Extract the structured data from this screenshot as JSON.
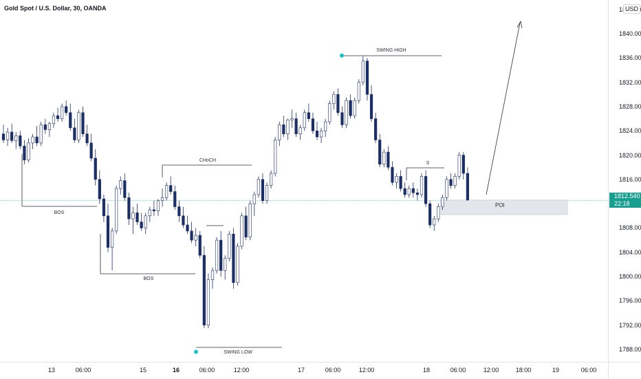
{
  "header": {
    "symbol_title": "Gold Spot / U.S. Dollar, 30, OANDA",
    "currency": "USD"
  },
  "price_axis": {
    "ticks": [
      "1840.000",
      "1836.000",
      "1832.000",
      "1828.000",
      "1824.000",
      "1820.000",
      "1816.000",
      "1808.000",
      "1804.000",
      "1800.000",
      "1796.000",
      "1792.000",
      "1788.000"
    ],
    "ticks_partial": [
      "18",
      "00"
    ],
    "current_price": "1812.540",
    "countdown": "22:18"
  },
  "time_axis": {
    "ticks": [
      "13",
      "06:00",
      "15",
      "16",
      "06:00",
      "12:00",
      "17",
      "06:00",
      "12:00",
      "18",
      "06:00",
      "12:00",
      "18:00",
      "19",
      "06:00"
    ]
  },
  "annotations": {
    "swing_high": "SWING HIGH",
    "swing_low": "SWING LOW",
    "choch": "CHoCH",
    "bos_1": "BOS",
    "bos_2": "BOS",
    "s_label": "S",
    "poi": "POI"
  },
  "colors": {
    "bull_candle": "#ffffff",
    "candle_outline": "#1c2e66",
    "bear_candle": "#1c2e66",
    "price_line": "#1a9e8f",
    "poi_zone": "#e3e6ea",
    "swing_marker": "#1cc0c8"
  },
  "chart_data": {
    "type": "candlestick",
    "title": "Gold Spot / U.S. Dollar, 30, OANDA",
    "ylim": [
      1786,
      1845
    ],
    "last_price": 1812.54,
    "swing_high": 1836.4,
    "swing_low": 1787.6,
    "ohlc": [
      [
        1823.5,
        1825.0,
        1822.0,
        1822.5
      ],
      [
        1822.5,
        1824.5,
        1821.5,
        1823.8
      ],
      [
        1823.8,
        1825.2,
        1822.0,
        1822.4
      ],
      [
        1822.4,
        1823.8,
        1821.0,
        1823.2
      ],
      [
        1823.2,
        1824.0,
        1821.0,
        1821.5
      ],
      [
        1821.5,
        1822.5,
        1818.5,
        1819.2
      ],
      [
        1819.2,
        1822.8,
        1818.8,
        1822.0
      ],
      [
        1822.0,
        1823.5,
        1821.0,
        1823.0
      ],
      [
        1823.0,
        1824.8,
        1821.5,
        1822.0
      ],
      [
        1822.0,
        1825.5,
        1821.5,
        1825.0
      ],
      [
        1825.0,
        1826.0,
        1823.5,
        1824.2
      ],
      [
        1824.2,
        1825.5,
        1823.0,
        1825.2
      ],
      [
        1825.2,
        1827.0,
        1824.5,
        1826.5
      ],
      [
        1826.5,
        1827.8,
        1825.5,
        1826.0
      ],
      [
        1826.0,
        1828.5,
        1825.5,
        1828.0
      ],
      [
        1828.0,
        1829.0,
        1826.5,
        1827.0
      ],
      [
        1827.0,
        1828.5,
        1824.0,
        1824.5
      ],
      [
        1824.5,
        1826.0,
        1822.0,
        1822.5
      ],
      [
        1822.5,
        1827.5,
        1822.0,
        1827.0
      ],
      [
        1827.0,
        1828.0,
        1823.0,
        1823.5
      ],
      [
        1823.5,
        1825.0,
        1821.5,
        1822.0
      ],
      [
        1822.0,
        1823.5,
        1819.0,
        1819.5
      ],
      [
        1819.5,
        1821.0,
        1815.0,
        1816.0
      ],
      [
        1816.0,
        1817.5,
        1812.0,
        1812.8
      ],
      [
        1812.8,
        1813.5,
        1809.0,
        1810.0
      ],
      [
        1810.0,
        1812.0,
        1804.0,
        1804.8
      ],
      [
        1804.8,
        1808.0,
        1801.0,
        1807.5
      ],
      [
        1807.5,
        1815.0,
        1807.0,
        1814.5
      ],
      [
        1814.5,
        1816.5,
        1813.5,
        1815.8
      ],
      [
        1815.8,
        1817.0,
        1812.5,
        1813.0
      ],
      [
        1813.0,
        1813.8,
        1808.5,
        1809.5
      ],
      [
        1809.5,
        1811.5,
        1807.0,
        1810.5
      ],
      [
        1810.5,
        1812.0,
        1808.5,
        1809.0
      ],
      [
        1809.0,
        1810.5,
        1807.5,
        1808.0
      ],
      [
        1808.0,
        1810.5,
        1807.0,
        1810.0
      ],
      [
        1810.0,
        1811.5,
        1809.0,
        1811.0
      ],
      [
        1811.0,
        1812.5,
        1810.0,
        1810.8
      ],
      [
        1810.8,
        1812.8,
        1810.0,
        1812.5
      ],
      [
        1812.5,
        1814.5,
        1811.5,
        1813.0
      ],
      [
        1813.0,
        1815.5,
        1812.5,
        1815.0
      ],
      [
        1815.0,
        1816.5,
        1813.5,
        1814.0
      ],
      [
        1814.0,
        1815.0,
        1811.0,
        1811.5
      ],
      [
        1811.5,
        1812.5,
        1809.0,
        1810.0
      ],
      [
        1810.0,
        1811.5,
        1808.0,
        1808.5
      ],
      [
        1808.5,
        1810.0,
        1807.0,
        1807.5
      ],
      [
        1807.5,
        1809.0,
        1805.5,
        1806.0
      ],
      [
        1806.0,
        1808.0,
        1805.0,
        1806.8
      ],
      [
        1806.8,
        1807.5,
        1803.0,
        1803.5
      ],
      [
        1803.5,
        1805.0,
        1791.5,
        1792.0
      ],
      [
        1792.0,
        1800.5,
        1791.5,
        1799.5
      ],
      [
        1799.5,
        1801.5,
        1798.0,
        1801.0
      ],
      [
        1801.0,
        1806.5,
        1800.5,
        1806.0
      ],
      [
        1806.0,
        1807.5,
        1800.0,
        1801.0
      ],
      [
        1801.0,
        1803.5,
        1799.5,
        1803.0
      ],
      [
        1803.0,
        1807.5,
        1802.5,
        1807.0
      ],
      [
        1807.0,
        1808.0,
        1798.0,
        1799.0
      ],
      [
        1799.0,
        1805.5,
        1798.5,
        1805.0
      ],
      [
        1805.0,
        1810.5,
        1804.5,
        1810.0
      ],
      [
        1810.0,
        1811.5,
        1806.0,
        1806.5
      ],
      [
        1806.5,
        1812.5,
        1806.0,
        1812.0
      ],
      [
        1812.0,
        1814.0,
        1810.0,
        1813.5
      ],
      [
        1813.5,
        1816.5,
        1813.0,
        1816.0
      ],
      [
        1816.0,
        1817.0,
        1812.0,
        1812.5
      ],
      [
        1812.5,
        1815.5,
        1812.0,
        1815.0
      ],
      [
        1815.0,
        1817.5,
        1814.5,
        1817.0
      ],
      [
        1817.0,
        1823.0,
        1816.5,
        1822.5
      ],
      [
        1822.5,
        1825.5,
        1821.5,
        1825.0
      ],
      [
        1825.0,
        1826.5,
        1823.0,
        1823.5
      ],
      [
        1823.5,
        1826.0,
        1822.5,
        1825.8
      ],
      [
        1825.8,
        1827.5,
        1824.5,
        1826.0
      ],
      [
        1826.0,
        1827.0,
        1823.0,
        1823.5
      ],
      [
        1823.5,
        1825.0,
        1822.5,
        1824.5
      ],
      [
        1824.5,
        1827.5,
        1824.0,
        1827.0
      ],
      [
        1827.0,
        1828.5,
        1825.5,
        1826.0
      ],
      [
        1826.0,
        1827.0,
        1823.5,
        1824.0
      ],
      [
        1824.0,
        1825.5,
        1822.5,
        1823.0
      ],
      [
        1823.0,
        1824.5,
        1822.0,
        1824.0
      ],
      [
        1824.0,
        1826.0,
        1823.0,
        1825.5
      ],
      [
        1825.5,
        1829.0,
        1825.0,
        1828.5
      ],
      [
        1828.5,
        1830.5,
        1827.5,
        1830.0
      ],
      [
        1830.0,
        1831.0,
        1826.5,
        1827.0
      ],
      [
        1827.0,
        1828.0,
        1824.5,
        1825.0
      ],
      [
        1825.0,
        1829.5,
        1824.5,
        1829.0
      ],
      [
        1829.0,
        1830.0,
        1826.0,
        1826.5
      ],
      [
        1826.5,
        1829.5,
        1826.0,
        1829.0
      ],
      [
        1829.0,
        1832.5,
        1828.5,
        1832.0
      ],
      [
        1832.0,
        1836.4,
        1831.5,
        1835.5
      ],
      [
        1835.5,
        1836.0,
        1829.0,
        1830.0
      ],
      [
        1830.0,
        1831.5,
        1825.5,
        1826.0
      ],
      [
        1826.0,
        1827.0,
        1822.0,
        1822.5
      ],
      [
        1822.5,
        1823.5,
        1818.0,
        1818.5
      ],
      [
        1818.5,
        1821.0,
        1818.0,
        1820.5
      ],
      [
        1820.5,
        1821.5,
        1817.5,
        1818.0
      ],
      [
        1818.0,
        1819.0,
        1815.0,
        1815.5
      ],
      [
        1815.5,
        1817.0,
        1814.5,
        1816.5
      ],
      [
        1816.5,
        1817.5,
        1814.0,
        1814.5
      ],
      [
        1814.5,
        1815.5,
        1813.0,
        1813.5
      ],
      [
        1813.5,
        1815.0,
        1813.0,
        1814.5
      ],
      [
        1814.5,
        1815.5,
        1813.0,
        1813.8
      ],
      [
        1813.8,
        1814.5,
        1812.5,
        1813.5
      ],
      [
        1813.5,
        1817.0,
        1813.0,
        1816.5
      ],
      [
        1816.5,
        1817.5,
        1811.5,
        1812.0
      ],
      [
        1812.0,
        1812.5,
        1808.0,
        1808.5
      ],
      [
        1808.5,
        1810.0,
        1807.5,
        1809.5
      ],
      [
        1809.5,
        1812.0,
        1809.0,
        1811.5
      ],
      [
        1811.5,
        1813.5,
        1811.0,
        1813.0
      ],
      [
        1813.0,
        1816.5,
        1812.5,
        1816.0
      ],
      [
        1816.0,
        1817.0,
        1814.5,
        1815.0
      ],
      [
        1815.0,
        1817.0,
        1814.5,
        1816.5
      ],
      [
        1816.5,
        1820.5,
        1816.0,
        1820.0
      ],
      [
        1820.0,
        1820.5,
        1816.0,
        1817.0
      ],
      [
        1817.0,
        1818.0,
        1812.5,
        1812.6
      ]
    ],
    "levels": [
      {
        "label": "SWING HIGH",
        "price": 1836.4
      },
      {
        "label": "SWING LOW",
        "price": 1787.6
      },
      {
        "label": "CHoCH",
        "price": 1818.2
      },
      {
        "label": "BOS",
        "price": 1810.8
      },
      {
        "label": "BOS",
        "price": 1799.5
      },
      {
        "label": "S",
        "price": 1817.3
      }
    ],
    "zone": {
      "label": "POI",
      "price_top": 1812.6,
      "price_bottom": 1810.2
    }
  }
}
